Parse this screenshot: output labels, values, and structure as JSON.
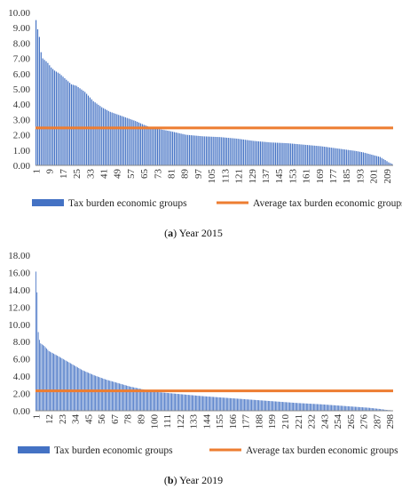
{
  "chart_data": [
    {
      "type": "bar",
      "caption_letter": "a",
      "caption_text": "Year 2015",
      "n_bars": 212,
      "x_ticks": [
        1,
        9,
        17,
        25,
        33,
        41,
        49,
        57,
        65,
        73,
        81,
        89,
        97,
        105,
        113,
        121,
        129,
        137,
        145,
        153,
        161,
        169,
        177,
        185,
        193,
        201,
        209
      ],
      "y_ticks": [
        "0.00",
        "1.00",
        "2.00",
        "3.00",
        "4.00",
        "5.00",
        "6.00",
        "7.00",
        "8.00",
        "9.00",
        "10.00"
      ],
      "ylim": [
        0,
        10
      ],
      "bar_profile": {
        "x": [
          1,
          2,
          3,
          4,
          5,
          6,
          8,
          10,
          12,
          15,
          18,
          22,
          25,
          30,
          35,
          40,
          45,
          50,
          55,
          60,
          65,
          70,
          80,
          90,
          100,
          110,
          120,
          130,
          140,
          150,
          160,
          170,
          180,
          190,
          195,
          200,
          205,
          208,
          210,
          212
        ],
        "y": [
          9.5,
          8.9,
          8.4,
          7.4,
          7.0,
          6.9,
          6.7,
          6.4,
          6.2,
          6.0,
          5.7,
          5.3,
          5.2,
          4.8,
          4.2,
          3.8,
          3.5,
          3.3,
          3.1,
          2.9,
          2.65,
          2.45,
          2.25,
          2.0,
          1.9,
          1.85,
          1.75,
          1.6,
          1.5,
          1.45,
          1.35,
          1.25,
          1.1,
          0.95,
          0.85,
          0.7,
          0.55,
          0.35,
          0.2,
          0.1
        ]
      },
      "average": 2.45,
      "series": [
        {
          "name": "Tax burden economic groups",
          "color": "#4472C4"
        },
        {
          "name": "Average tax burden economic groups",
          "color": "#ED7D31"
        }
      ],
      "legend_position": "bottom",
      "grid": false
    },
    {
      "type": "bar",
      "caption_letter": "b",
      "caption_text": "Year 2019",
      "n_bars": 300,
      "x_ticks": [
        1,
        12,
        23,
        34,
        45,
        56,
        67,
        78,
        89,
        100,
        111,
        122,
        133,
        144,
        155,
        166,
        177,
        188,
        199,
        210,
        221,
        232,
        243,
        254,
        265,
        276,
        287,
        298
      ],
      "y_ticks": [
        "0.00",
        "2.00",
        "4.00",
        "6.00",
        "8.00",
        "10.00",
        "12.00",
        "14.00",
        "16.00",
        "18.00"
      ],
      "ylim": [
        0,
        18
      ],
      "bar_profile": {
        "x": [
          1,
          2,
          3,
          4,
          5,
          8,
          12,
          16,
          20,
          25,
          30,
          35,
          40,
          50,
          60,
          70,
          80,
          90,
          100,
          120,
          140,
          160,
          180,
          200,
          220,
          240,
          260,
          280,
          290,
          295,
          300
        ],
        "y": [
          16.1,
          13.7,
          9.1,
          8.2,
          7.8,
          7.5,
          6.9,
          6.6,
          6.3,
          5.9,
          5.5,
          5.1,
          4.7,
          4.1,
          3.6,
          3.2,
          2.8,
          2.5,
          2.2,
          1.95,
          1.7,
          1.5,
          1.3,
          1.1,
          0.9,
          0.75,
          0.55,
          0.35,
          0.2,
          0.1,
          0.05
        ]
      },
      "average": 2.3,
      "series": [
        {
          "name": "Tax burden economic groups",
          "color": "#4472C4"
        },
        {
          "name": "Average tax burden economic groups",
          "color": "#ED7D31"
        }
      ],
      "legend_position": "bottom",
      "grid": false
    }
  ]
}
